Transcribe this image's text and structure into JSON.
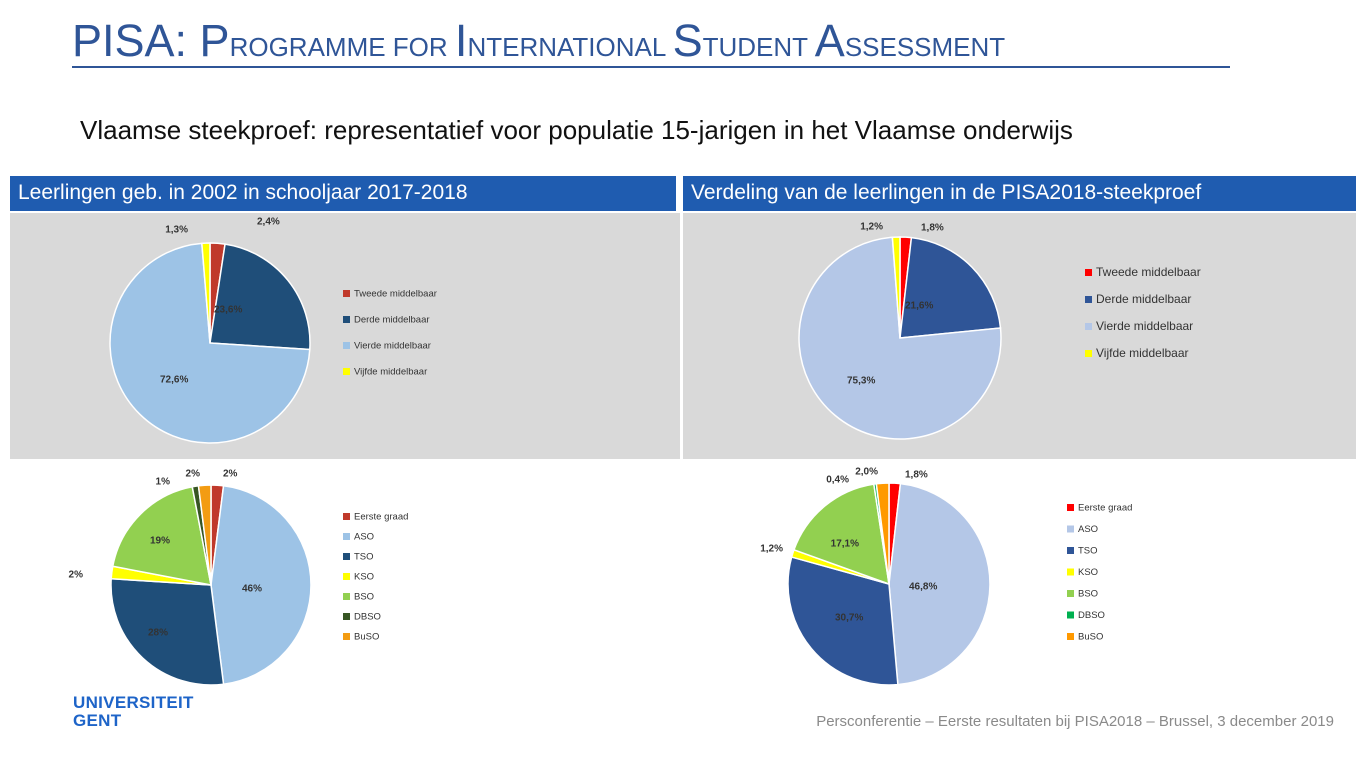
{
  "title": {
    "parts": [
      {
        "text": "PISA: P",
        "small": false
      },
      {
        "text": "ROGRAMME FOR ",
        "small": true
      },
      {
        "text": "I",
        "small": false
      },
      {
        "text": "NTERNATIONAL ",
        "small": true
      },
      {
        "text": "S",
        "small": false
      },
      {
        "text": "TUDENT ",
        "small": true
      },
      {
        "text": "A",
        "small": false
      },
      {
        "text": "SSESSMENT",
        "small": true
      }
    ]
  },
  "subtitle": "Vlaamse steekproef: representatief voor populatie 15-jarigen in het Vlaamse onderwijs",
  "headers": {
    "left": "Leerlingen geb. in 2002 in schooljaar 2017-2018",
    "right": "Verdeling van de leerlingen in de PISA2018-steekproef"
  },
  "footer": "Persconferentie – Eerste resultaten bij PISA2018 – Brussel, 3 december 2019",
  "logo": {
    "line1": "UNIVERSITEIT",
    "line2": "GENT"
  },
  "chart_data": [
    {
      "type": "pie",
      "categories": [
        "Tweede middelbaar",
        "Derde middelbaar",
        "Vierde middelbaar",
        "Vijfde middelbaar"
      ],
      "values": [
        2.4,
        23.6,
        72.6,
        1.3
      ],
      "labels": [
        "2,4%",
        "23,6%",
        "72,6%",
        "1,3%"
      ],
      "colors": [
        "#c0392b",
        "#1f4e79",
        "#9dc3e6",
        "#ffff00"
      ],
      "legend": "right"
    },
    {
      "type": "pie",
      "categories": [
        "Tweede middelbaar",
        "Derde middelbaar",
        "Vierde middelbaar",
        "Vijfde middelbaar"
      ],
      "values": [
        1.8,
        21.6,
        75.3,
        1.2
      ],
      "labels": [
        "1,8%",
        "21,6%",
        "75,3%",
        "1,2%"
      ],
      "colors": [
        "#ff0000",
        "#2f5597",
        "#b4c7e7",
        "#ffff00"
      ],
      "legend": "right"
    },
    {
      "type": "pie",
      "categories": [
        "Eerste graad",
        "ASO",
        "TSO",
        "KSO",
        "BSO",
        "DBSO",
        "BuSO"
      ],
      "values": [
        2,
        46,
        28,
        2,
        19,
        1,
        2
      ],
      "labels": [
        "2%",
        "46%",
        "28%",
        "2%",
        "19%",
        "1%",
        "2%"
      ],
      "colors": [
        "#c0392b",
        "#9dc3e6",
        "#1f4e79",
        "#ffff00",
        "#92d050",
        "#375623",
        "#f39c12"
      ],
      "legend": "right"
    },
    {
      "type": "pie",
      "categories": [
        "Eerste graad",
        "ASO",
        "TSO",
        "KSO",
        "BSO",
        "DBSO",
        "BuSO"
      ],
      "values": [
        1.8,
        46.8,
        30.7,
        1.2,
        17.1,
        0.4,
        2.0
      ],
      "labels": [
        "1,8%",
        "46,8%",
        "30,7%",
        "1,2%",
        "17,1%",
        "0,4%",
        "2,0%"
      ],
      "colors": [
        "#ff0000",
        "#b4c7e7",
        "#2f5597",
        "#ffff00",
        "#92d050",
        "#00b050",
        "#ff9900"
      ],
      "legend": "right"
    }
  ]
}
